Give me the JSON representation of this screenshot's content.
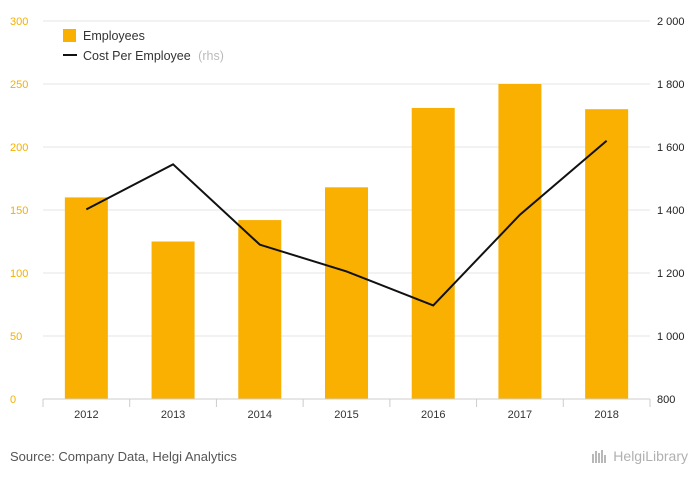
{
  "colors": {
    "bar": "#f9b000",
    "line": "#111111",
    "grid": "#e6e6e6",
    "left_axis": "#f2b000",
    "right_axis": "#222222"
  },
  "chart_data": {
    "type": "bar",
    "categories": [
      "2012",
      "2013",
      "2014",
      "2015",
      "2016",
      "2017",
      "2018"
    ],
    "series": [
      {
        "name": "Employees",
        "type": "bar",
        "axis": "left",
        "values": [
          160,
          125,
          142,
          168,
          231,
          250,
          230
        ]
      },
      {
        "name": "Cost Per Employee",
        "type": "line",
        "axis": "right",
        "values": [
          1402,
          1545,
          1290,
          1205,
          1097,
          1385,
          1620
        ]
      }
    ],
    "legend": {
      "items": [
        "Employees",
        "Cost Per Employee"
      ],
      "rhs_note": "(rhs)",
      "placement": "top-left"
    },
    "y_left": {
      "lim": [
        0,
        300
      ],
      "ticks": [
        0,
        50,
        100,
        150,
        200,
        250,
        300
      ],
      "tick_labels": [
        "0",
        "50",
        "100",
        "150",
        "200",
        "250",
        "300"
      ]
    },
    "y_right": {
      "lim": [
        800,
        2000
      ],
      "ticks": [
        800,
        1000,
        1200,
        1400,
        1600,
        1800,
        2000
      ],
      "tick_labels": [
        "800",
        "1 000",
        "1 200",
        "1 400",
        "1 600",
        "1 800",
        "2 000"
      ]
    },
    "grid": true
  },
  "footer": {
    "source": "Source: Company Data, Helgi Analytics",
    "logo_text": "HelgiLibrary"
  }
}
